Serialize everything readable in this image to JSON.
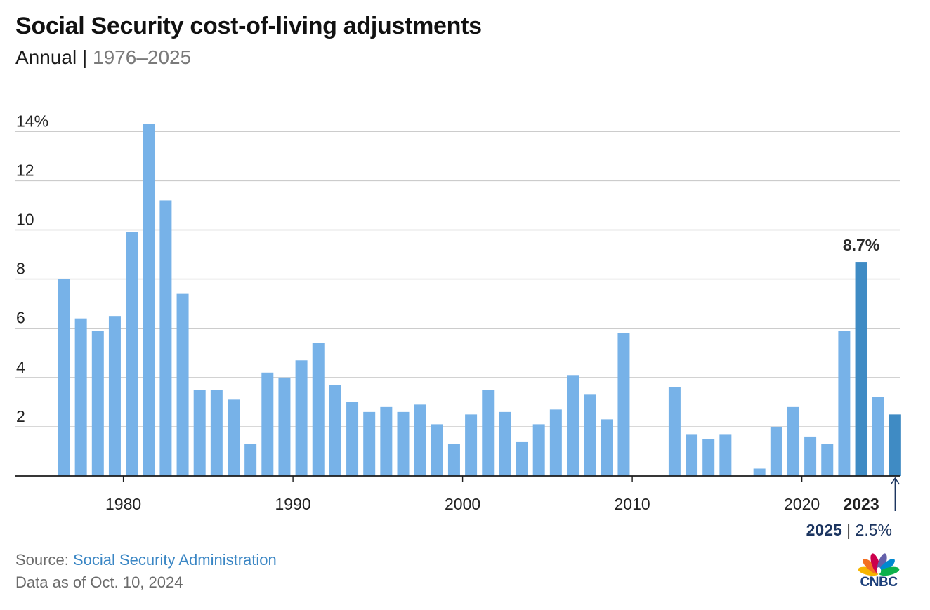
{
  "header": {
    "title": "Social Security cost-of-living adjustments",
    "subtitle_main": "Annual",
    "subtitle_sep": "|",
    "subtitle_range": "1976–2025"
  },
  "chart_data": {
    "type": "bar",
    "title": "Social Security cost-of-living adjustments",
    "subtitle": "Annual | 1976–2025",
    "xlabel": "",
    "ylabel": "",
    "ylim": [
      0,
      14
    ],
    "y_ticks": [
      {
        "value": 2,
        "label": "2"
      },
      {
        "value": 4,
        "label": "4"
      },
      {
        "value": 6,
        "label": "6"
      },
      {
        "value": 8,
        "label": "8"
      },
      {
        "value": 10,
        "label": "10"
      },
      {
        "value": 12,
        "label": "12"
      },
      {
        "value": 14,
        "label": "14%"
      }
    ],
    "x_ticks": [
      {
        "value": 1980,
        "label": "1980"
      },
      {
        "value": 1990,
        "label": "1990"
      },
      {
        "value": 2000,
        "label": "2000"
      },
      {
        "value": 2010,
        "label": "2010"
      },
      {
        "value": 2020,
        "label": "2020"
      }
    ],
    "grid": true,
    "x": [
      1976,
      1977,
      1978,
      1979,
      1980,
      1981,
      1982,
      1983,
      1984,
      1985,
      1986,
      1987,
      1988,
      1989,
      1990,
      1991,
      1992,
      1993,
      1994,
      1995,
      1996,
      1997,
      1998,
      1999,
      2000,
      2001,
      2002,
      2003,
      2004,
      2005,
      2006,
      2007,
      2008,
      2009,
      2010,
      2011,
      2012,
      2013,
      2014,
      2015,
      2016,
      2017,
      2018,
      2019,
      2020,
      2021,
      2022,
      2023,
      2024,
      2025
    ],
    "values": [
      8.0,
      6.4,
      5.9,
      6.5,
      9.9,
      14.3,
      11.2,
      7.4,
      3.5,
      3.5,
      3.1,
      1.3,
      4.2,
      4.0,
      4.7,
      5.4,
      3.7,
      3.0,
      2.6,
      2.8,
      2.6,
      2.9,
      2.1,
      1.3,
      2.5,
      3.5,
      2.6,
      1.4,
      2.1,
      2.7,
      4.1,
      3.3,
      2.3,
      5.8,
      0.0,
      0.0,
      3.6,
      1.7,
      1.5,
      1.7,
      0.0,
      0.3,
      2.0,
      2.8,
      1.6,
      1.3,
      5.9,
      8.7,
      3.2,
      2.5
    ],
    "highlighted": [
      2023,
      2025
    ],
    "colors": {
      "bar": "#77b2e8",
      "highlight": "#3f8bc4",
      "grid": "#cccccc",
      "axis": "#1a1a1a",
      "annotation_dark": "#1c3560"
    },
    "annotations": [
      {
        "year": 2023,
        "bar_label": "8.7%",
        "axis_label": "2023"
      },
      {
        "year": 2025,
        "year_label": "2025",
        "sep": "|",
        "value_label": "2.5%"
      }
    ]
  },
  "footer": {
    "source_prefix": "Source:",
    "source_name": "Social Security Administration",
    "data_as_of": "Data as of Oct. 10, 2024"
  },
  "logo": {
    "text": "CNBC",
    "icon": "peacock-icon",
    "feather_colors": [
      "#f7b500",
      "#f37021",
      "#cc004c",
      "#6460aa",
      "#0089d0",
      "#0db14b"
    ]
  }
}
